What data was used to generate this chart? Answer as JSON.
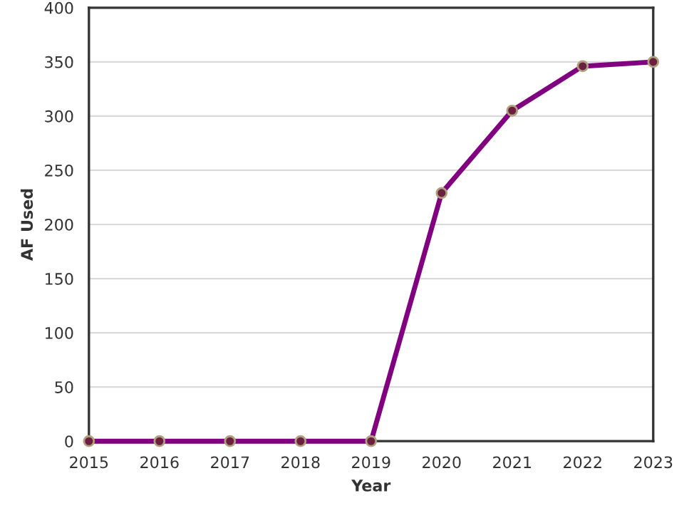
{
  "chart_data": {
    "type": "line",
    "xlabel": "Year",
    "ylabel": "AF Used",
    "x": [
      2015,
      2016,
      2017,
      2018,
      2019,
      2020,
      2021,
      2022,
      2023
    ],
    "series": [
      {
        "color": "#800080",
        "values": [
          0,
          0,
          0,
          0,
          0,
          229,
          305,
          346,
          350
        ]
      }
    ],
    "xlim": [
      2015,
      2023
    ],
    "xticks": [
      2015,
      2016,
      2017,
      2018,
      2019,
      2020,
      2021,
      2022,
      2023
    ],
    "ylim": [
      0,
      400
    ],
    "yticks": [
      0,
      50,
      100,
      150,
      200,
      250,
      300,
      350,
      400
    ],
    "grid": "y",
    "marker": "circle",
    "line_style": "solid"
  }
}
